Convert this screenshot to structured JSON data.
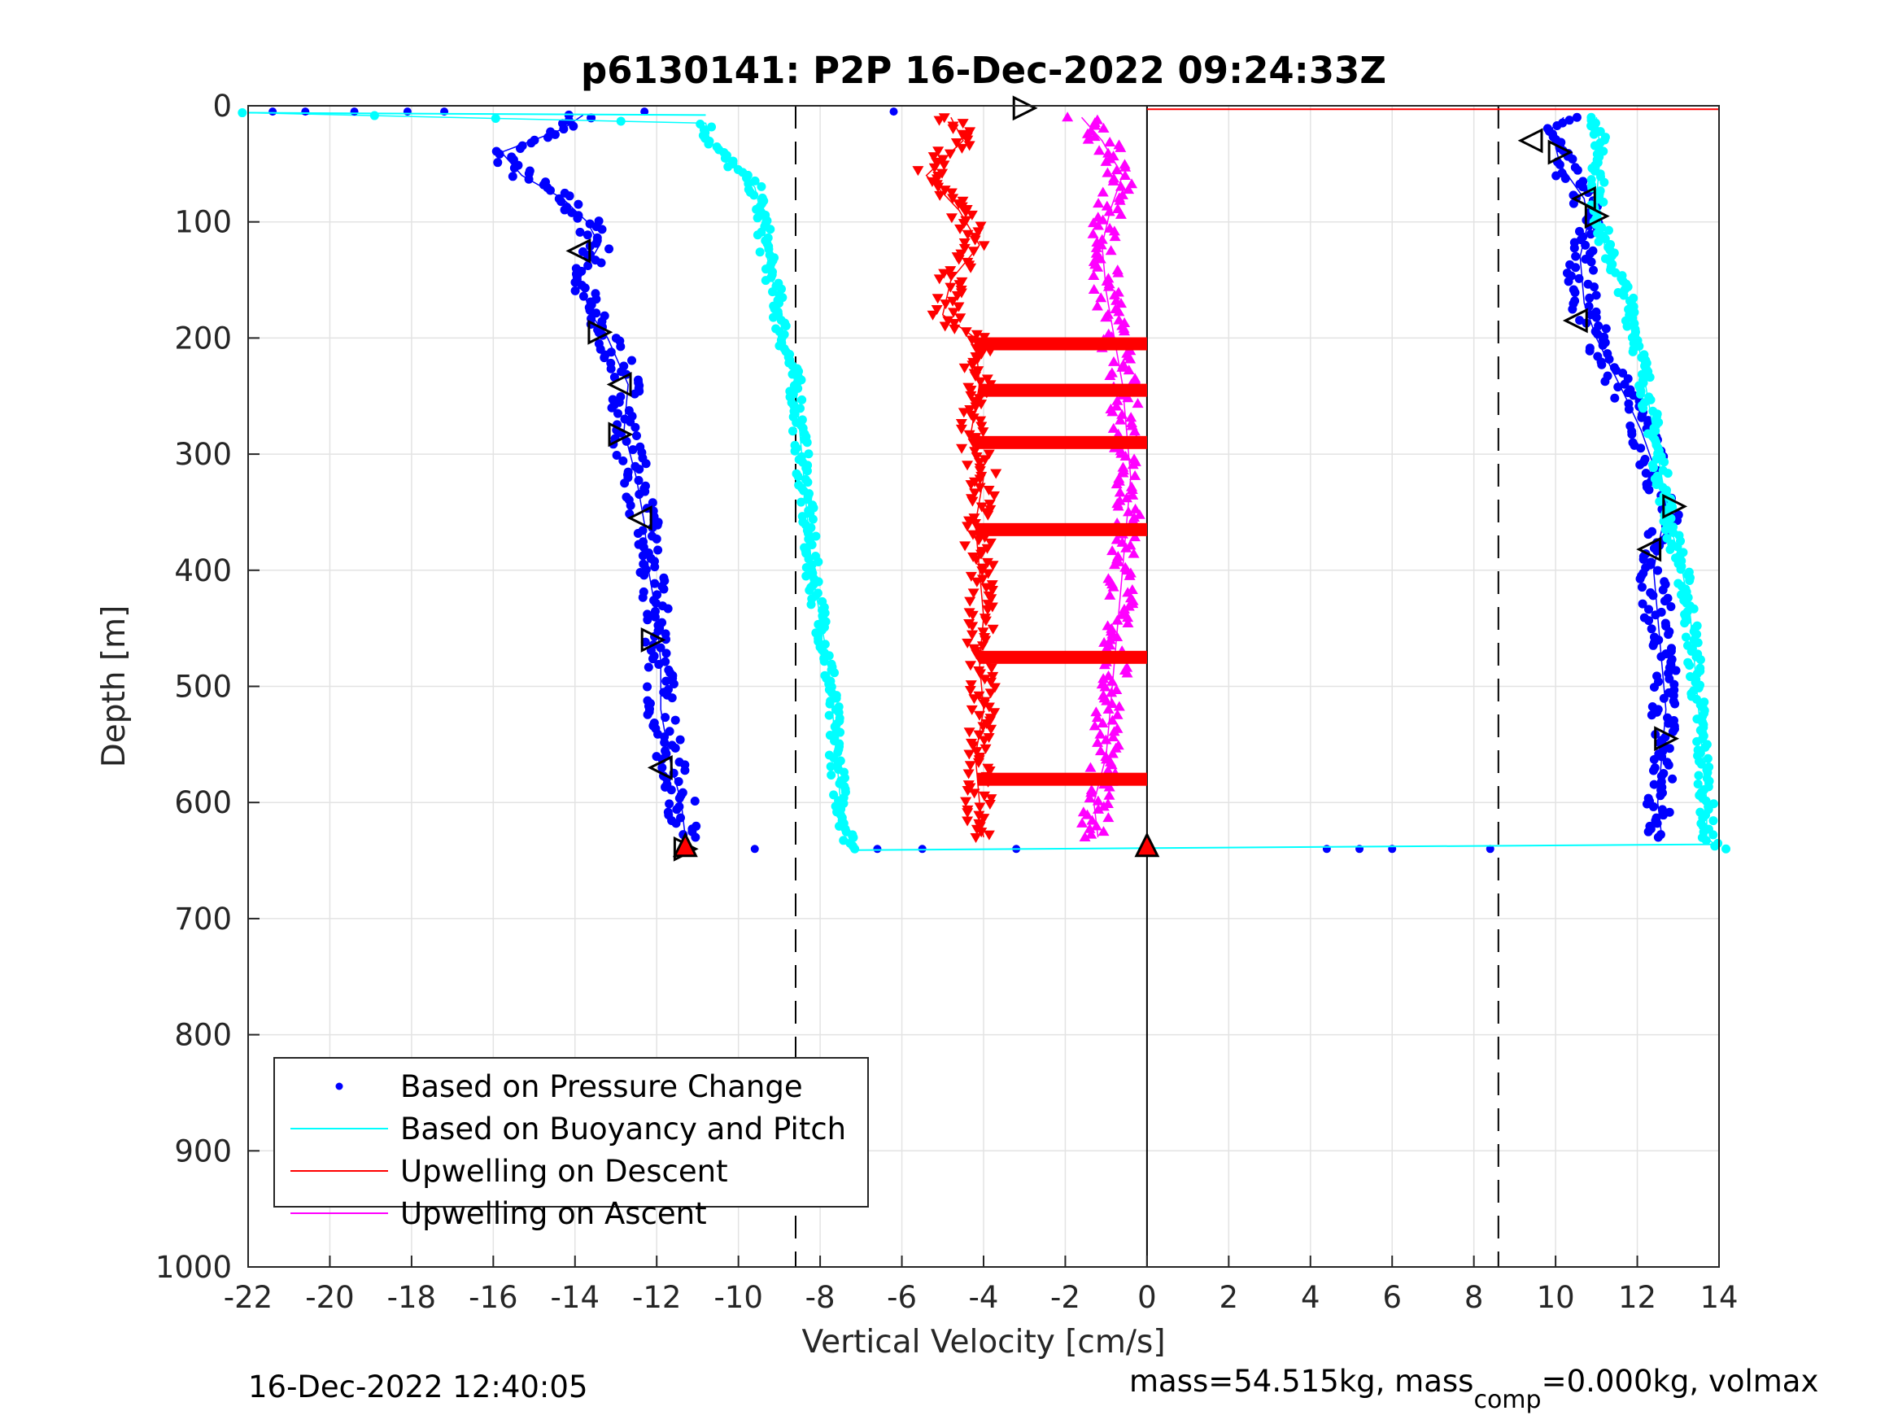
{
  "chart_data": {
    "type": "scatter",
    "title": "p6130141: P2P 16-Dec-2022 09:24:33Z",
    "xlabel": "Vertical Velocity [cm/s]",
    "ylabel": "Depth [m]",
    "xlim": [
      -22,
      14
    ],
    "ylim": [
      1000,
      0
    ],
    "y_reversed": true,
    "grid": true,
    "legend_position": "bottom-left",
    "xticks": [
      "-22",
      "-20",
      "-18",
      "-16",
      "-14",
      "-12",
      "-10",
      "-8",
      "-6",
      "-4",
      "-2",
      "0",
      "2",
      "4",
      "6",
      "8",
      "10",
      "12",
      "14"
    ],
    "yticks": [
      "0",
      "100",
      "200",
      "300",
      "400",
      "500",
      "600",
      "700",
      "800",
      "900",
      "1000"
    ],
    "reference_lines": {
      "dashed_x": [
        -8.6,
        8.6
      ],
      "solid_x": [
        0
      ]
    },
    "legend": [
      {
        "label": "Based on Pressure Change",
        "color": "#0000ff",
        "style": "dot"
      },
      {
        "label": "Based on Buoyancy and Pitch",
        "color": "#00ffff",
        "style": "line"
      },
      {
        "label": "Upwelling on Descent",
        "color": "#ff0000",
        "style": "line"
      },
      {
        "label": "Upwelling on Ascent",
        "color": "#ff00ff",
        "style": "line"
      }
    ],
    "series": [
      {
        "name": "Based on Pressure Change",
        "segment": "descent",
        "color": "#0000ff",
        "depth": [
          8,
          20,
          40,
          60,
          80,
          100,
          120,
          150,
          180,
          200,
          240,
          280,
          320,
          360,
          400,
          440,
          480,
          520,
          560,
          600,
          630
        ],
        "velocity": [
          -13.8,
          -14.3,
          -15.8,
          -15.3,
          -14.3,
          -13.7,
          -13.4,
          -13.9,
          -13.6,
          -13.2,
          -12.7,
          -12.8,
          -12.5,
          -12.3,
          -12.2,
          -12.0,
          -11.9,
          -11.9,
          -11.7,
          -11.4,
          -11.3
        ]
      },
      {
        "name": "Based on Pressure Change",
        "segment": "ascent",
        "color": "#0000ff",
        "depth": [
          630,
          600,
          560,
          520,
          480,
          440,
          400,
          380,
          350,
          320,
          300,
          280,
          250,
          200,
          170,
          130,
          100,
          80,
          50,
          20,
          10
        ],
        "velocity": [
          12.6,
          12.5,
          12.6,
          12.7,
          12.6,
          12.5,
          12.4,
          12.5,
          12.7,
          12.5,
          12.3,
          12.1,
          11.7,
          11.0,
          10.7,
          10.6,
          10.8,
          10.7,
          10.1,
          9.9,
          10.2
        ]
      },
      {
        "name": "Based on Buoyancy and Pitch",
        "segment": "descent",
        "color": "#00ffff",
        "depth": [
          6,
          15,
          30,
          50,
          70,
          100,
          130,
          160,
          200,
          240,
          280,
          320,
          360,
          400,
          440,
          480,
          520,
          560,
          600,
          630,
          640
        ],
        "velocity": [
          -22,
          -10.8,
          -10.7,
          -10.2,
          -9.6,
          -9.4,
          -9.3,
          -9.1,
          -8.9,
          -8.6,
          -8.5,
          -8.4,
          -8.3,
          -8.2,
          -8.0,
          -7.8,
          -7.7,
          -7.6,
          -7.5,
          -7.3,
          -7.2
        ]
      },
      {
        "name": "Based on Buoyancy and Pitch",
        "segment": "ascent",
        "color": "#00ffff",
        "depth": [
          640,
          630,
          600,
          560,
          520,
          480,
          440,
          400,
          360,
          320,
          280,
          240,
          200,
          160,
          120,
          80,
          40,
          10
        ],
        "velocity": [
          14,
          13.7,
          13.7,
          13.6,
          13.5,
          13.4,
          13.3,
          13.1,
          12.8,
          12.6,
          12.4,
          12.2,
          12.0,
          11.7,
          11.2,
          11.0,
          11.1,
          11.0
        ]
      },
      {
        "name": "Upwelling on Descent",
        "color": "#ff0000",
        "depth": [
          10,
          30,
          60,
          90,
          120,
          150,
          180,
          200,
          240,
          280,
          320,
          360,
          400,
          440,
          480,
          520,
          560,
          600,
          630
        ],
        "velocity": [
          -4.8,
          -4.5,
          -5.4,
          -4.6,
          -4.1,
          -4.8,
          -5.0,
          -4.2,
          -4.1,
          -4.3,
          -4.0,
          -4.2,
          -4.1,
          -4.0,
          -4.1,
          -4.0,
          -4.2,
          -4.1,
          -4.0
        ]
      },
      {
        "name": "Upwelling on Ascent",
        "color": "#ff00ff",
        "depth": [
          630,
          600,
          560,
          520,
          480,
          440,
          400,
          360,
          320,
          280,
          240,
          200,
          160,
          120,
          90,
          60,
          30,
          10
        ],
        "velocity": [
          -1.2,
          -1.3,
          -1.0,
          -0.9,
          -0.8,
          -0.7,
          -0.6,
          -0.5,
          -0.4,
          -0.5,
          -0.6,
          -0.8,
          -1.0,
          -1.1,
          -0.9,
          -0.6,
          -1.1,
          -1.6
        ]
      },
      {
        "name": "Surface and bottom markers",
        "color": "#0000ff",
        "depth": [
          5,
          5,
          5,
          5,
          5,
          5,
          5,
          640,
          640,
          640,
          640,
          640,
          640,
          640,
          640
        ],
        "velocity": [
          -21.4,
          -20.6,
          -19.4,
          -18.1,
          -17.2,
          -12.3,
          -6.2,
          -9.6,
          -6.6,
          -5.5,
          -3.2,
          4.4,
          5.2,
          6.0,
          8.4
        ]
      }
    ],
    "markers": {
      "descent_triangles": [
        {
          "depth": 125,
          "velocity": -13.9
        },
        {
          "depth": 195,
          "velocity": -13.4
        },
        {
          "depth": 240,
          "velocity": -12.9
        },
        {
          "depth": 283,
          "velocity": -12.9
        },
        {
          "depth": 355,
          "velocity": -12.4
        },
        {
          "depth": 460,
          "velocity": -12.1
        },
        {
          "depth": 570,
          "velocity": -11.9
        },
        {
          "depth": 640,
          "velocity": -11.3
        }
      ],
      "ascent_triangles": [
        {
          "depth": 30,
          "velocity": 9.4
        },
        {
          "depth": 40,
          "velocity": 10.1
        },
        {
          "depth": 80,
          "velocity": 10.7
        },
        {
          "depth": 95,
          "velocity": 11.0
        },
        {
          "depth": 185,
          "velocity": 10.5
        },
        {
          "depth": 345,
          "velocity": 12.9
        },
        {
          "depth": 382,
          "velocity": 12.3
        },
        {
          "depth": 545,
          "velocity": 12.7
        }
      ],
      "surface_triangle": {
        "depth": 2,
        "velocity": -3.0
      },
      "bottom_red_triangles": [
        {
          "depth": 641,
          "velocity": -11.3
        },
        {
          "depth": 641,
          "velocity": 0.0
        }
      ]
    }
  },
  "footer": {
    "timestamp": "16-Dec-2022 12:40:05",
    "mass_text": "mass=54.515kg, mass",
    "mass_sub": "comp",
    "mass_rest": "=0.000kg, volmax"
  }
}
